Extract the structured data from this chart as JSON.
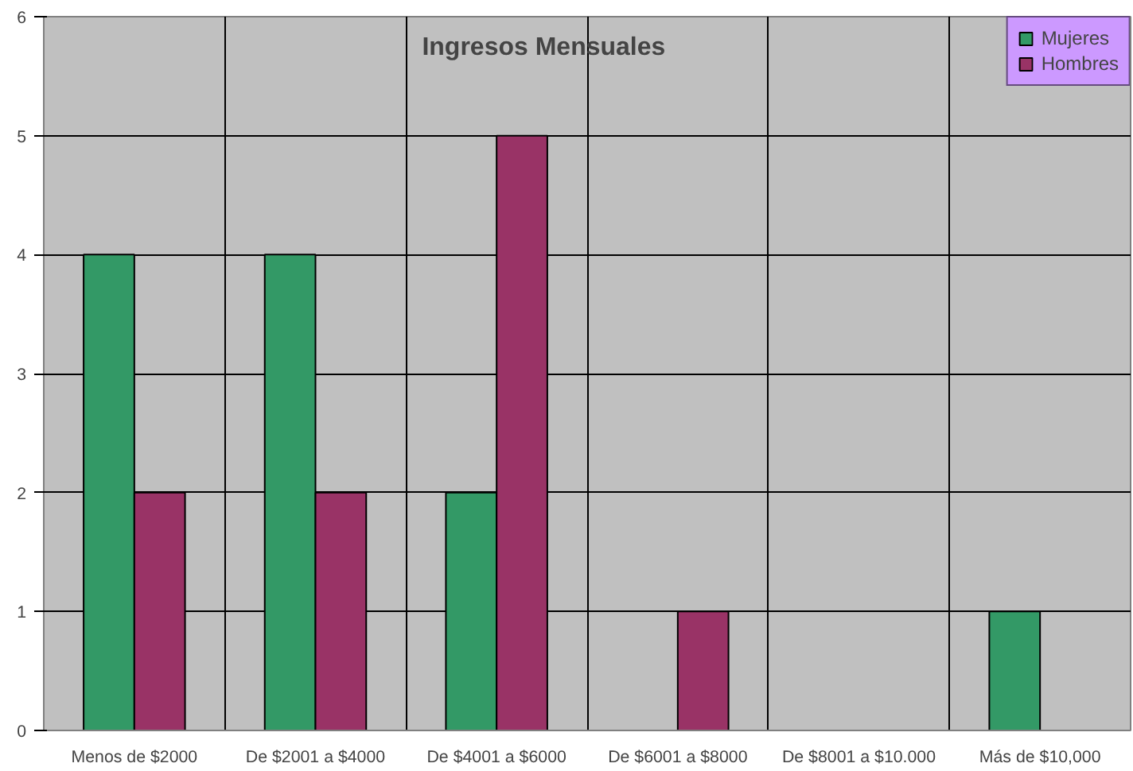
{
  "chart_data": {
    "type": "bar",
    "title": "Ingresos Mensuales",
    "categories": [
      "Menos de $2000",
      "De $2001 a $4000",
      "De $4001 a $6000",
      "De $6001 a $8000",
      "De $8001 a $10.000",
      "Más de $10,000"
    ],
    "series": [
      {
        "name": "Mujeres",
        "color": "#339966",
        "values": [
          4,
          4,
          2,
          null,
          null,
          1
        ]
      },
      {
        "name": "Hombres",
        "color": "#993366",
        "values": [
          2,
          2,
          5,
          1,
          null,
          null
        ]
      }
    ],
    "ylim": [
      0,
      6
    ],
    "yticks": [
      0,
      1,
      2,
      3,
      4,
      5,
      6
    ],
    "grid": true,
    "legend": "top right"
  }
}
